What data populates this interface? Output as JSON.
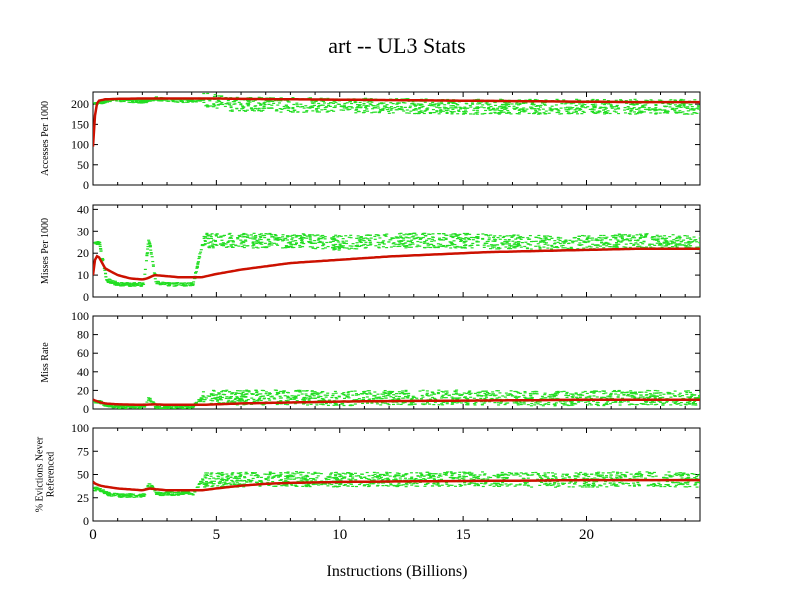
{
  "chart_data": {
    "type": "scatter",
    "title": "art -- UL3  Stats",
    "xlabel": "Instructions (Billions)",
    "x_ticks": [
      "0",
      "5",
      "10",
      "15",
      "20"
    ],
    "xlim": [
      0,
      24.6
    ],
    "colors": {
      "samples": "#22dd22",
      "cumulative": "#cc1100",
      "axes": "#000000"
    },
    "grid": false,
    "panels": [
      {
        "ylabel": [
          "Accesses Per 1000"
        ],
        "ylim": [
          0,
          230
        ],
        "y_ticks": [
          "0",
          "50",
          "100",
          "150",
          "200"
        ],
        "series": [
          {
            "role": "samples",
            "x": [
              0.2,
              0.5,
              1.0,
              1.5,
              2.0,
              2.5,
              3.0,
              3.5,
              4.0,
              4.4,
              5.0,
              6.0,
              8.0,
              10.0,
              12.0,
              15.0,
              18.0,
              20.0,
              22.0,
              24.5
            ],
            "y": [
              205,
              210,
              212,
              210,
              208,
              215,
              212,
              210,
              210,
              215,
              205,
              200,
              200,
              198,
              197,
              195,
              195,
              195,
              195,
              195
            ]
          },
          {
            "role": "cumulative",
            "x": [
              0,
              0.05,
              0.1,
              0.2,
              0.5,
              1.0,
              2.0,
              3.0,
              4.0,
              4.4,
              5.0,
              6.0,
              8.0,
              10.0,
              12.0,
              14.0,
              16.0,
              18.0,
              20.0,
              22.0,
              24.6
            ],
            "y": [
              95,
              140,
              190,
              208,
              212,
              213,
              214,
              214,
              214,
              214,
              214,
              213,
              212,
              211,
              210,
              209,
              208,
              207,
              206,
              205,
              205
            ]
          }
        ]
      },
      {
        "ylabel": [
          "Misses Per 1000"
        ],
        "ylim": [
          0,
          42
        ],
        "y_ticks": [
          "0",
          "10",
          "20",
          "30",
          "40"
        ],
        "series": [
          {
            "role": "samples",
            "x": [
              0.2,
              0.5,
              1.0,
              1.5,
              2.0,
              2.2,
              2.5,
              3.0,
              3.5,
              4.0,
              4.4,
              5.0,
              6.0,
              8.0,
              10.0,
              12.0,
              15.0,
              18.0,
              20.0,
              22.0,
              24.5
            ],
            "y": [
              25,
              8,
              6,
              6,
              6,
              27,
              7,
              6,
              6,
              6,
              26,
              26,
              26,
              26,
              25,
              26,
              26,
              25,
              25,
              26,
              25
            ]
          },
          {
            "role": "cumulative",
            "x": [
              0,
              0.05,
              0.1,
              0.2,
              0.3,
              0.5,
              1.0,
              1.5,
              2.0,
              2.2,
              2.5,
              3.0,
              3.5,
              4.0,
              4.4,
              5.0,
              6.0,
              7.0,
              8.0,
              10.0,
              12.0,
              14.0,
              16.0,
              18.0,
              20.0,
              22.0,
              24.6
            ],
            "y": [
              10,
              15,
              18,
              19,
              17,
              13,
              10,
              8.5,
              8,
              8.5,
              10,
              9.5,
              9,
              9,
              9,
              10.5,
              12.5,
              14,
              15.5,
              17,
              18.5,
              19.5,
              20.5,
              21,
              21.5,
              22,
              22
            ]
          }
        ]
      },
      {
        "ylabel": [
          "Miss Rate"
        ],
        "ylim": [
          0,
          100
        ],
        "y_ticks": [
          "0",
          "20",
          "40",
          "60",
          "80",
          "100"
        ],
        "series": [
          {
            "role": "samples",
            "x": [
              0.2,
              0.5,
              1.0,
              1.5,
              2.0,
              2.2,
              2.5,
              3.0,
              3.5,
              4.0,
              4.4,
              5.0,
              6.0,
              8.0,
              10.0,
              12.0,
              15.0,
              18.0,
              20.0,
              22.0,
              24.5
            ],
            "y": [
              8,
              5,
              3,
              3,
              3,
              12,
              3,
              3,
              3,
              3,
              13,
              13,
              13,
              13,
              12,
              13,
              13,
              12,
              12,
              13,
              12
            ]
          },
          {
            "role": "cumulative",
            "x": [
              0,
              0.1,
              0.3,
              0.5,
              1.0,
              2.0,
              2.5,
              3.0,
              4.0,
              4.4,
              5.0,
              6.0,
              8.0,
              10.0,
              12.0,
              15.0,
              18.0,
              20.0,
              22.0,
              24.6
            ],
            "y": [
              10,
              9,
              7,
              6,
              5,
              4.5,
              5,
              4.5,
              4.5,
              4.5,
              5,
              6,
              7,
              8,
              8.5,
              9,
              9.5,
              10,
              10,
              10
            ]
          }
        ]
      },
      {
        "ylabel": [
          "% Evictions Never",
          "Referenced"
        ],
        "ylim": [
          0,
          100
        ],
        "y_ticks": [
          "0",
          "25",
          "50",
          "75",
          "100"
        ],
        "series": [
          {
            "role": "samples",
            "x": [
              0.2,
              0.5,
              1.0,
              1.5,
              2.0,
              2.2,
              2.5,
              3.0,
              3.5,
              4.0,
              4.4,
              5.0,
              6.0,
              8.0,
              10.0,
              12.0,
              15.0,
              18.0,
              20.0,
              22.0,
              24.5
            ],
            "y": [
              35,
              30,
              28,
              28,
              28,
              42,
              30,
              30,
              30,
              30,
              45,
              45,
              45,
              46,
              45,
              45,
              46,
              45,
              45,
              46,
              45
            ]
          },
          {
            "role": "cumulative",
            "x": [
              0,
              0.1,
              0.3,
              0.5,
              1.0,
              2.0,
              2.3,
              2.6,
              3.0,
              4.0,
              4.4,
              5.0,
              6.0,
              7.0,
              8.0,
              10.0,
              12.0,
              15.0,
              18.0,
              20.0,
              22.0,
              24.6
            ],
            "y": [
              42,
              40,
              38,
              37,
              35,
              33,
              35,
              34,
              33,
              33,
              33,
              35,
              38,
              40,
              41,
              42,
              42.5,
              43,
              43.5,
              44,
              44,
              44
            ]
          }
        ]
      }
    ]
  }
}
